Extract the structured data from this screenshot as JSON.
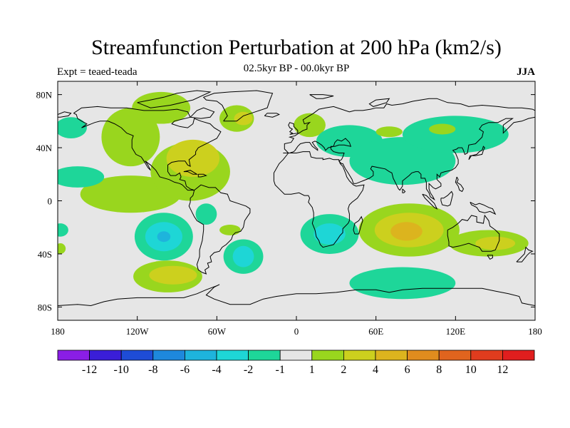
{
  "figure": {
    "title": "Streamfunction Perturbation at 200 hPa (km2/s)",
    "subtitle": "02.5kyr BP - 00.0kyr BP",
    "left_label": "Expt = teaed-teada",
    "right_label": "JJA"
  },
  "map": {
    "projection": "cylindrical-equidistant",
    "lon_range": [
      -180,
      180
    ],
    "lat_range": [
      -90,
      90
    ],
    "lon_ticks": [
      {
        "value": -180,
        "label": "180"
      },
      {
        "value": -120,
        "label": "120W"
      },
      {
        "value": -60,
        "label": "60W"
      },
      {
        "value": 0,
        "label": "0"
      },
      {
        "value": 60,
        "label": "60E"
      },
      {
        "value": 120,
        "label": "120E"
      },
      {
        "value": 180,
        "label": "180"
      }
    ],
    "lat_ticks": [
      {
        "value": 80,
        "label": "80N"
      },
      {
        "value": 40,
        "label": "40N"
      },
      {
        "value": 0,
        "label": "0"
      },
      {
        "value": -40,
        "label": "40S"
      },
      {
        "value": -80,
        "label": "80S"
      }
    ],
    "background_color": "#e6e6e6",
    "regions": [
      {
        "lon": -125,
        "lat": 48,
        "rlon": 22,
        "rlat": 22,
        "level": "1-2"
      },
      {
        "lon": -125,
        "lat": 5,
        "rlon": 38,
        "rlat": 14,
        "level": "1-2"
      },
      {
        "lon": -80,
        "lat": 22,
        "rlon": 30,
        "rlat": 22,
        "level": "1-2"
      },
      {
        "lon": -78,
        "lat": 32,
        "rlon": 20,
        "rlat": 14,
        "level": "2-4"
      },
      {
        "lon": -102,
        "lat": 70,
        "rlon": 22,
        "rlat": 12,
        "level": "1-2"
      },
      {
        "lon": -165,
        "lat": 18,
        "rlon": 20,
        "rlat": 8,
        "level": "-1--2"
      },
      {
        "lon": -170,
        "lat": 55,
        "rlon": 12,
        "rlat": 8,
        "level": "-1--2"
      },
      {
        "lon": -100,
        "lat": -27,
        "rlon": 22,
        "rlat": 18,
        "level": "-1--2"
      },
      {
        "lon": -100,
        "lat": -27,
        "rlon": 14,
        "rlat": 11,
        "level": "-2--4"
      },
      {
        "lon": -100,
        "lat": -27,
        "rlon": 5,
        "rlat": 4,
        "level": "-4--6"
      },
      {
        "lon": -40,
        "lat": -42,
        "rlon": 15,
        "rlat": 13,
        "level": "-1--2"
      },
      {
        "lon": -40,
        "lat": -42,
        "rlon": 8,
        "rlat": 8,
        "level": "-2--4"
      },
      {
        "lon": -68,
        "lat": -10,
        "rlon": 8,
        "rlat": 8,
        "level": "-1--2"
      },
      {
        "lon": -97,
        "lat": -57,
        "rlon": 26,
        "rlat": 12,
        "level": "1-2"
      },
      {
        "lon": -93,
        "lat": -56,
        "rlon": 18,
        "rlat": 7,
        "level": "2-4"
      },
      {
        "lon": -50,
        "lat": -22,
        "rlon": 8,
        "rlat": 4,
        "level": "1-2"
      },
      {
        "lon": -45,
        "lat": 62,
        "rlon": 13,
        "rlat": 10,
        "level": "1-2"
      },
      {
        "lon": -40,
        "lat": 62,
        "rlon": 7,
        "rlat": 5,
        "level": "2-4"
      },
      {
        "lon": 10,
        "lat": 57,
        "rlon": 12,
        "rlat": 9,
        "level": "1-2"
      },
      {
        "lon": 25,
        "lat": -25,
        "rlon": 22,
        "rlat": 15,
        "level": "-1--2"
      },
      {
        "lon": 25,
        "lat": -25,
        "rlon": 12,
        "rlat": 8,
        "level": "-2--4"
      },
      {
        "lon": 40,
        "lat": 45,
        "rlon": 25,
        "rlat": 12,
        "level": "-1--2"
      },
      {
        "lon": 80,
        "lat": 30,
        "rlon": 40,
        "rlat": 18,
        "level": "-1--2"
      },
      {
        "lon": 120,
        "lat": 50,
        "rlon": 40,
        "rlat": 14,
        "level": "-1--2"
      },
      {
        "lon": 70,
        "lat": 52,
        "rlon": 10,
        "rlat": 4,
        "level": "1-2"
      },
      {
        "lon": 110,
        "lat": 54,
        "rlon": 10,
        "rlat": 4,
        "level": "1-2"
      },
      {
        "lon": 85,
        "lat": -22,
        "rlon": 38,
        "rlat": 20,
        "level": "1-2"
      },
      {
        "lon": 85,
        "lat": -22,
        "rlon": 26,
        "rlat": 13,
        "level": "2-4"
      },
      {
        "lon": 83,
        "lat": -23,
        "rlon": 12,
        "rlat": 7,
        "level": "4-6"
      },
      {
        "lon": 80,
        "lat": -62,
        "rlon": 40,
        "rlat": 12,
        "level": "-1--2"
      },
      {
        "lon": 145,
        "lat": -32,
        "rlon": 30,
        "rlat": 10,
        "level": "1-2"
      },
      {
        "lon": 150,
        "lat": -32,
        "rlon": 15,
        "rlat": 5,
        "level": "2-4"
      },
      {
        "lon": -178,
        "lat": -22,
        "rlon": 6,
        "rlat": 5,
        "level": "-1--2"
      },
      {
        "lon": -178,
        "lat": -36,
        "rlon": 4,
        "rlat": 4,
        "level": "1-2"
      }
    ]
  },
  "colorbar": {
    "colors": [
      "#8a1ee6",
      "#3a1ed8",
      "#1e4cd6",
      "#1e88dc",
      "#1eb4dc",
      "#1ed6d6",
      "#1ed699",
      "#e6e6e6",
      "#99d61e",
      "#ccd01e",
      "#dcb41e",
      "#e08c1e",
      "#e0641e",
      "#e03c1e",
      "#e01e1e"
    ],
    "labels": [
      "-12",
      "-10",
      "-8",
      "-6",
      "-4",
      "-2",
      "-1",
      "1",
      "2",
      "4",
      "6",
      "8",
      "10",
      "12"
    ],
    "level_colors": {
      "-4--6": "#1eb4dc",
      "-2--4": "#1ed6d6",
      "-1--2": "#1ed699",
      "1-2": "#99d61e",
      "2-4": "#ccd01e",
      "4-6": "#dcb41e"
    }
  }
}
